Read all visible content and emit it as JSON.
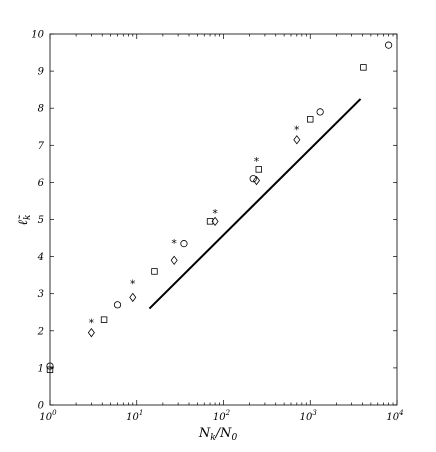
{
  "chart_data": {
    "type": "scatter",
    "xscale": "log",
    "xlim": [
      1,
      10000
    ],
    "ylim": [
      0,
      10
    ],
    "xlabel": "N_k/N_0",
    "ylabel": "ℓ̃_k",
    "x_ticks": [
      {
        "value": 1,
        "base": "10",
        "exp": "0"
      },
      {
        "value": 10,
        "base": "10",
        "exp": "1"
      },
      {
        "value": 100,
        "base": "10",
        "exp": "2"
      },
      {
        "value": 1000,
        "base": "10",
        "exp": "3"
      },
      {
        "value": 10000,
        "base": "10",
        "exp": "4"
      }
    ],
    "y_ticks": [
      "0",
      "1",
      "2",
      "3",
      "4",
      "5",
      "6",
      "7",
      "8",
      "9",
      "10"
    ],
    "series": [
      {
        "marker": "circle",
        "points": [
          [
            1,
            1.05
          ],
          [
            6,
            2.7
          ],
          [
            35,
            4.35
          ],
          [
            220,
            6.1
          ],
          [
            1300,
            7.9
          ],
          [
            8000,
            9.7
          ]
        ]
      },
      {
        "marker": "square",
        "points": [
          [
            1,
            0.95
          ],
          [
            4.2,
            2.3
          ],
          [
            16,
            3.6
          ],
          [
            70,
            4.95
          ],
          [
            255,
            6.35
          ],
          [
            1000,
            7.7
          ],
          [
            4100,
            9.1
          ]
        ]
      },
      {
        "marker": "diamond",
        "points": [
          [
            3,
            1.95
          ],
          [
            9,
            2.9
          ],
          [
            27,
            3.9
          ],
          [
            80,
            4.95
          ],
          [
            240,
            6.05
          ],
          [
            700,
            7.15
          ]
        ]
      },
      {
        "marker": "star",
        "points": [
          [
            3,
            2.25
          ],
          [
            9,
            3.3
          ],
          [
            27,
            4.4
          ],
          [
            80,
            5.2
          ],
          [
            240,
            6.6
          ],
          [
            700,
            7.45
          ]
        ]
      },
      {
        "marker": "line",
        "points": [
          [
            14,
            2.6
          ],
          [
            3800,
            8.25
          ]
        ]
      }
    ]
  }
}
